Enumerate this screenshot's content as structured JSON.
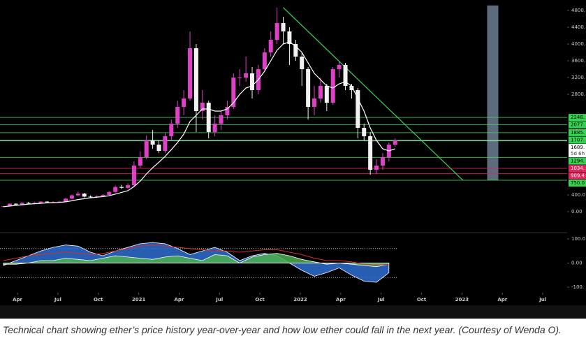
{
  "chart_data": [
    {
      "type": "candlestick",
      "open": [
        120,
        130,
        190,
        170,
        210,
        200,
        210,
        240,
        230,
        230,
        240,
        310,
        390,
        430,
        360,
        350,
        370,
        400,
        470,
        590,
        570,
        630,
        1100,
        1300,
        1700,
        1600,
        1450,
        1800,
        2100,
        2500,
        2700,
        3900,
        2400,
        2600,
        1900,
        2100,
        2300,
        2500,
        3200,
        3200,
        3300,
        2900,
        3400,
        3800,
        4100,
        4500,
        4300,
        4000,
        3700,
        3400,
        2500,
        2700,
        3000,
        2600,
        3400,
        3500,
        3000,
        2900,
        2000,
        1800,
        1000,
        1100,
        1300,
        1600
      ],
      "high": [
        140,
        200,
        200,
        230,
        230,
        230,
        250,
        250,
        250,
        260,
        330,
        410,
        480,
        450,
        390,
        390,
        420,
        490,
        620,
        640,
        680,
        1200,
        1440,
        1820,
        1950,
        1700,
        1880,
        2200,
        2650,
        2900,
        4300,
        4000,
        2900,
        2650,
        2300,
        2400,
        2650,
        3300,
        3400,
        3700,
        3450,
        3500,
        3900,
        4300,
        4870,
        4650,
        4400,
        4100,
        3800,
        3450,
        3000,
        3200,
        3050,
        3450,
        3580,
        3550,
        3050,
        2950,
        2100,
        1900,
        1250,
        1400,
        1650,
        1750
      ],
      "low": [
        110,
        120,
        160,
        160,
        190,
        190,
        200,
        220,
        220,
        220,
        230,
        300,
        370,
        340,
        330,
        330,
        350,
        390,
        460,
        540,
        540,
        600,
        1050,
        1250,
        1500,
        1400,
        1400,
        1720,
        2000,
        2300,
        2650,
        1900,
        2200,
        1750,
        1800,
        1950,
        2200,
        2450,
        3000,
        3100,
        2700,
        2800,
        3350,
        3700,
        4000,
        4000,
        3500,
        3600,
        3000,
        2200,
        2300,
        2600,
        2400,
        2550,
        3200,
        2900,
        2700,
        1750,
        1700,
        880,
        900,
        1000,
        1200,
        1550
      ],
      "close": [
        130,
        190,
        170,
        210,
        200,
        210,
        240,
        230,
        230,
        240,
        310,
        390,
        430,
        360,
        350,
        370,
        400,
        470,
        590,
        570,
        630,
        1100,
        1300,
        1700,
        1600,
        1450,
        1800,
        2100,
        2500,
        2700,
        3900,
        2400,
        2600,
        1900,
        2100,
        2300,
        2500,
        3200,
        3200,
        3300,
        2900,
        3400,
        3800,
        4100,
        4500,
        4300,
        4000,
        3700,
        3400,
        2500,
        2700,
        3000,
        2600,
        3400,
        3500,
        3000,
        2900,
        2000,
        1800,
        1000,
        1100,
        1300,
        1600,
        1700
      ],
      "up_color": "#e040c8",
      "down_color": "#f2f2f2",
      "ma": [
        120,
        135,
        150,
        165,
        180,
        190,
        200,
        210,
        215,
        222,
        235,
        260,
        290,
        310,
        330,
        345,
        360,
        380,
        420,
        460,
        500,
        600,
        730,
        900,
        1050,
        1180,
        1320,
        1480,
        1650,
        1850,
        2150,
        2300,
        2450,
        2450,
        2400,
        2400,
        2450,
        2600,
        2800,
        2950,
        3000,
        3150,
        3350,
        3600,
        3850,
        4000,
        4050,
        3950,
        3800,
        3550,
        3300,
        3150,
        3000,
        2950,
        3050,
        3100,
        3000,
        2700,
        2400,
        2000,
        1700,
        1500,
        1450,
        1500
      ],
      "ma_color": "#ffffff",
      "xlim": [
        0,
        90.5
      ],
      "xticks": [
        {
          "value": 2.25,
          "label": "Apr"
        },
        {
          "value": 8.75,
          "label": "Jul"
        },
        {
          "value": 15.25,
          "label": "Oct"
        },
        {
          "value": 21.75,
          "label": "2021"
        },
        {
          "value": 28.25,
          "label": "Apr"
        },
        {
          "value": 34.75,
          "label": "Jul"
        },
        {
          "value": 41.25,
          "label": "Oct"
        },
        {
          "value": 47.75,
          "label": "2022"
        },
        {
          "value": 54.25,
          "label": "Apr"
        },
        {
          "value": 60.75,
          "label": "Jul"
        },
        {
          "value": 67.25,
          "label": "Oct"
        },
        {
          "value": 73.75,
          "label": "2023"
        },
        {
          "value": 80.25,
          "label": "Apr"
        },
        {
          "value": 86.75,
          "label": "Jul"
        }
      ],
      "ylim": [
        -350,
        5050
      ],
      "yticks": [
        {
          "value": 4800,
          "label": "4800."
        },
        {
          "value": 4400,
          "label": "4400."
        },
        {
          "value": 4000,
          "label": "4000."
        },
        {
          "value": 3600,
          "label": "3600."
        },
        {
          "value": 3200,
          "label": "3200."
        },
        {
          "value": 2800,
          "label": "2800."
        },
        {
          "value": 400,
          "label": "400.0"
        },
        {
          "value": 0,
          "label": "0.00"
        }
      ],
      "grid": false,
      "levels": [
        {
          "value": 2248,
          "label": "2248.",
          "color": "#39d353"
        },
        {
          "value": 2077,
          "label": "2077.",
          "color": "#39d353"
        },
        {
          "value": 1885,
          "label": "1885.",
          "color": "#39d353"
        },
        {
          "value": 1707,
          "label": "1707.",
          "color": "#39d353"
        },
        {
          "value": 1689,
          "label": "1689.",
          "color": "#d8d8d8",
          "countdown": "5d 6h"
        },
        {
          "value": 1294,
          "label": "1294.",
          "color": "#39d353"
        },
        {
          "value": 1034,
          "label": "1034.",
          "color": "#e0245e"
        },
        {
          "value": 909.4,
          "label": "909.4",
          "color": "#e0245e"
        },
        {
          "value": 750,
          "label": "750.0",
          "color": "#39d353"
        }
      ],
      "trendline": {
        "x": [
          45,
          73.9
        ],
        "values": [
          4870,
          750
        ],
        "color": "#39d353"
      },
      "range_box": {
        "x": [
          77.8,
          79.6
        ],
        "values": [
          750,
          4920
        ],
        "color": "#5d6b7e"
      }
    },
    {
      "type": "area",
      "x": [
        0,
        2,
        4,
        6,
        8,
        10,
        12,
        14,
        16,
        18,
        20,
        22,
        24,
        26,
        28,
        30,
        32,
        34,
        36,
        38,
        40,
        42,
        44,
        46,
        48,
        50,
        52,
        54,
        56,
        58,
        60,
        62
      ],
      "series": [
        {
          "color": "#2f6fd0",
          "values": [
            -10,
            10,
            30,
            50,
            65,
            75,
            70,
            45,
            30,
            50,
            65,
            80,
            85,
            80,
            60,
            35,
            50,
            65,
            45,
            10,
            30,
            40,
            30,
            0,
            -30,
            -55,
            -40,
            -20,
            -50,
            -75,
            -80,
            -40
          ]
        },
        {
          "color": "#4caf50",
          "values": [
            -5,
            -5,
            0,
            10,
            10,
            20,
            15,
            10,
            20,
            30,
            25,
            20,
            15,
            25,
            30,
            20,
            10,
            35,
            30,
            0,
            25,
            35,
            40,
            30,
            15,
            5,
            -5,
            0,
            -5,
            -10,
            -15,
            -5
          ]
        },
        {
          "color": "#d32f2f",
          "style": "line",
          "values": [
            10,
            20,
            30,
            35,
            40,
            45,
            40,
            35,
            40,
            50,
            60,
            70,
            75,
            70,
            65,
            60,
            55,
            50,
            50,
            45,
            50,
            55,
            55,
            45,
            35,
            20,
            10,
            10,
            5,
            -5,
            -10,
            -5
          ]
        }
      ],
      "bands": [
        60,
        -60
      ],
      "ylim": [
        -110,
        110
      ],
      "yticks": [
        {
          "value": 100,
          "label": "100.0"
        },
        {
          "value": 0,
          "label": "0.00"
        },
        {
          "value": -100,
          "label": "-100."
        }
      ]
    }
  ],
  "caption": "Technical chart showing ether’s price history year-over-year and how low ether could fall in the next year. (Courtesy of Wenda O)."
}
